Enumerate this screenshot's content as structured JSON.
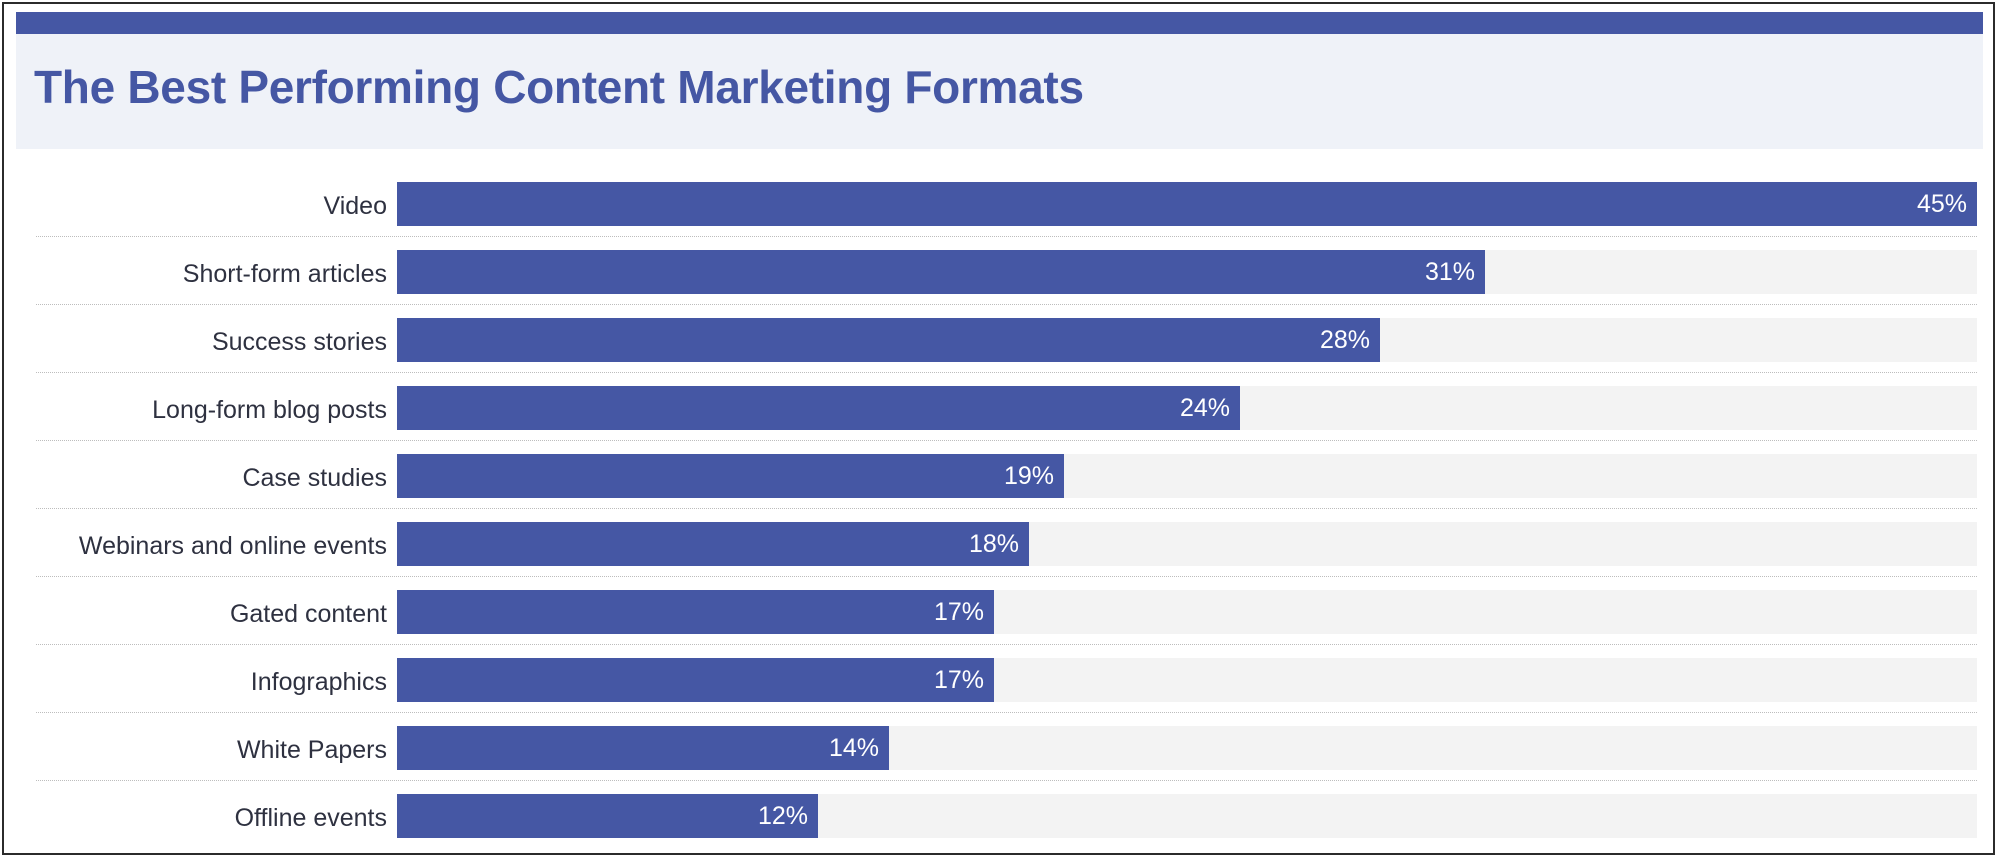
{
  "chart_data": {
    "type": "bar",
    "orientation": "horizontal",
    "title": "The Best Performing Content Marketing Formats",
    "categories": [
      "Video",
      "Short-form articles",
      "Success stories",
      "Long-form blog posts",
      "Case studies",
      "Webinars and online events",
      "Gated content",
      "Infographics",
      "White Papers",
      "Offline events"
    ],
    "values": [
      45,
      31,
      28,
      24,
      19,
      18,
      17,
      17,
      14,
      12
    ],
    "value_labels": [
      "45%",
      "31%",
      "28%",
      "24%",
      "19%",
      "18%",
      "17%",
      "17%",
      "14%",
      "12%"
    ],
    "xlim": [
      0,
      45
    ],
    "grid": false,
    "legend": "none"
  },
  "colors": {
    "bar": "#4557a4",
    "track": "#f3f3f3",
    "title": "#4557a4",
    "header_bg": "#eff2f8",
    "label_text": "#2e3140",
    "value_text": "#ffffff"
  }
}
